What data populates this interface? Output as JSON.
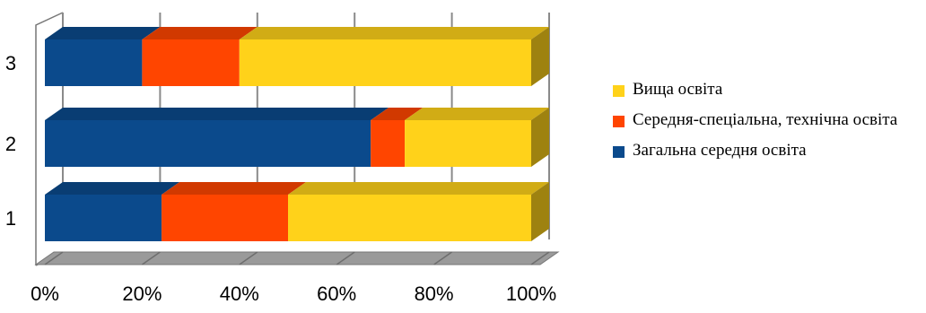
{
  "chart_data": {
    "type": "bar",
    "orientation": "horizontal",
    "stacked": "percent",
    "three_d": true,
    "categories": [
      "1",
      "2",
      "3"
    ],
    "series": [
      {
        "name": "Загальна середня освіта",
        "values": [
          24,
          67,
          20
        ],
        "color": "#0b4a8c"
      },
      {
        "name": "Середня-спеціальна, технічна освіта",
        "values": [
          26,
          7,
          20
        ],
        "color": "#ff4500"
      },
      {
        "name": "Вища освіта",
        "values": [
          50,
          26,
          60
        ],
        "color": "#ffd21a"
      }
    ],
    "xlim": [
      0,
      100
    ],
    "xticks": [
      "0%",
      "20%",
      "40%",
      "60%",
      "80%",
      "100%"
    ],
    "grid": true,
    "legend_position": "right",
    "legend_order": [
      "Вища освіта",
      "Середня-спеціальна, технічна освіта",
      "Загальна середня освіта"
    ]
  }
}
